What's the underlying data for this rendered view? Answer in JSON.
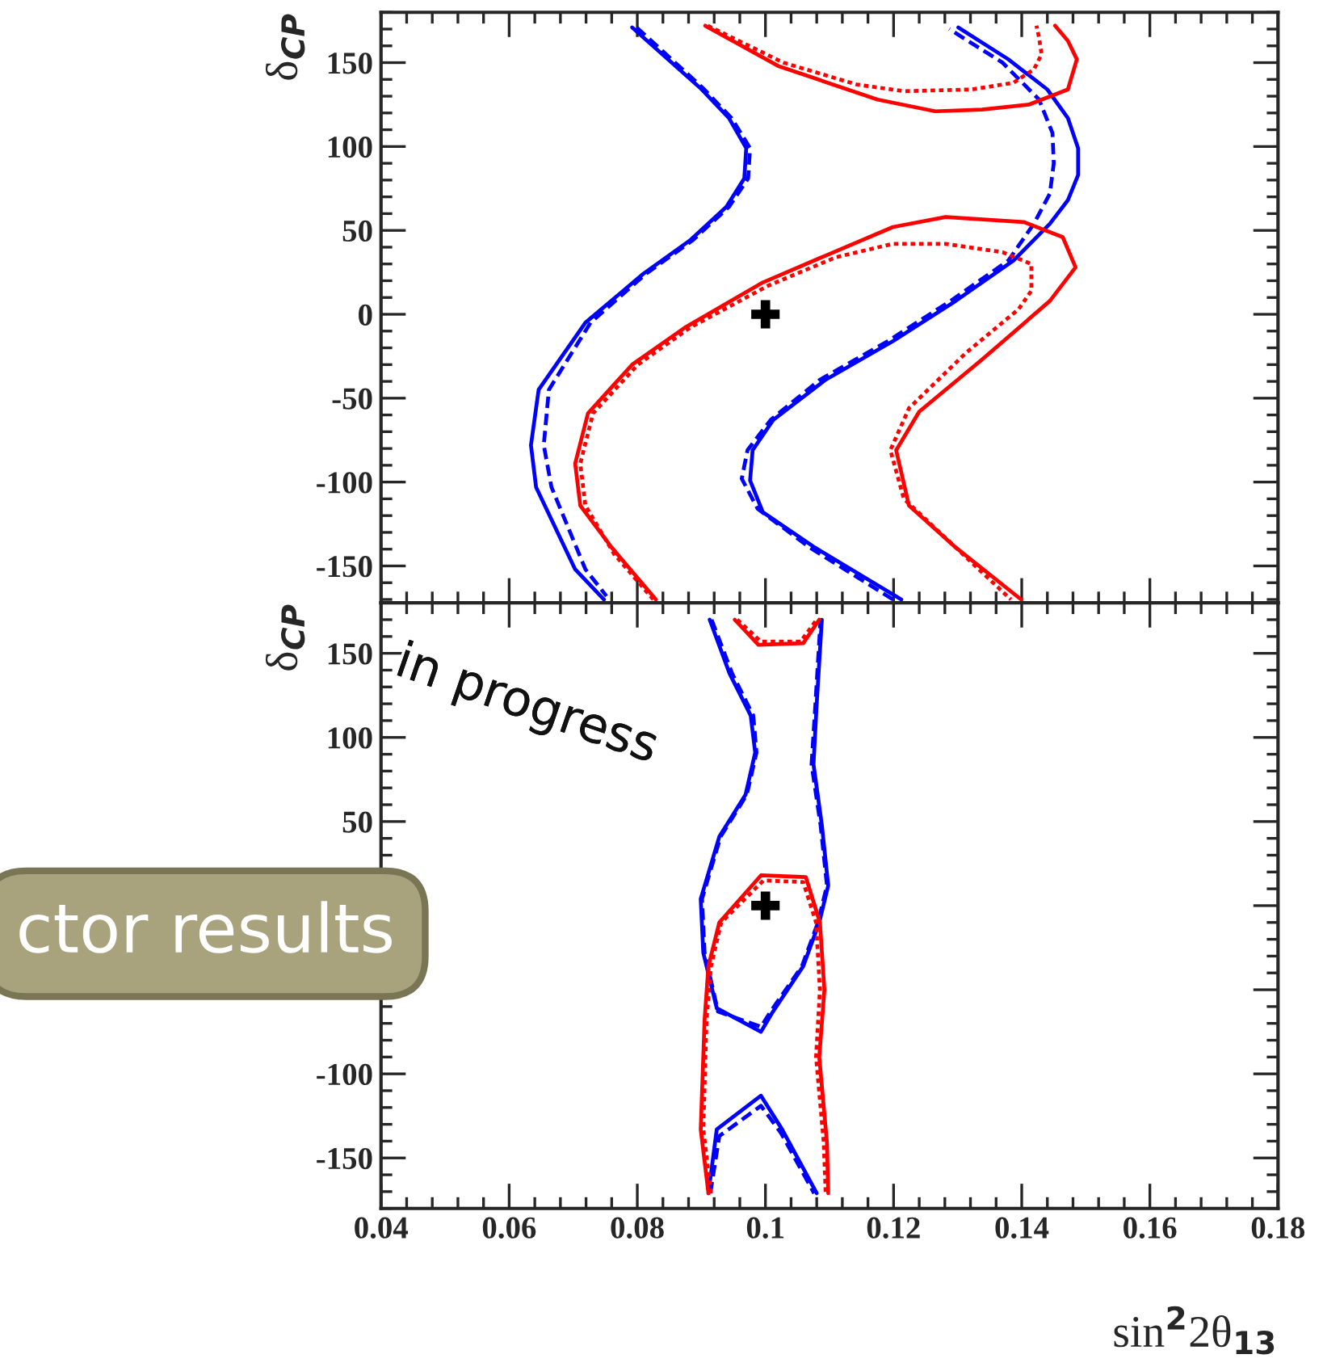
{
  "chart_data": [
    {
      "type": "line",
      "ylabel": "δ$_{CP}$",
      "xlim": [
        0.04,
        0.18
      ],
      "ylim": [
        -172,
        180
      ],
      "xticks": [
        0.04,
        0.06,
        0.08,
        0.1,
        0.12,
        0.14,
        0.16,
        0.18
      ],
      "yticks": [
        -150,
        -100,
        -50,
        0,
        50,
        100,
        150
      ],
      "tick_labels": "y",
      "grid": false,
      "annotations": [
        "in progress",
        "ctor results"
      ],
      "series": [
        {
          "color": "#0000ff",
          "line_style": "solid",
          "x": [
            0.0792,
            0.0898,
            0.0943,
            0.097,
            0.0967,
            0.0939,
            0.0882,
            0.0809,
            0.0719,
            0.0646,
            0.0634,
            0.0642,
            0.0703,
            0.0748
          ],
          "values": [
            171,
            135,
            117,
            99,
            81,
            64,
            44,
            24,
            -5,
            -45,
            -78,
            -103,
            -152,
            -170
          ]
        },
        {
          "color": "#0000ff",
          "line_style": "dashed",
          "x": [
            0.0799,
            0.0902,
            0.0947,
            0.0976,
            0.0973,
            0.0943,
            0.0886,
            0.0813,
            0.0727,
            0.0662,
            0.0654,
            0.0666,
            0.0719,
            0.0752
          ],
          "values": [
            171,
            135,
            117,
            99,
            81,
            64,
            44,
            24,
            -5,
            -45,
            -78,
            -103,
            -152,
            -168
          ]
        },
        {
          "color": "#0000ff",
          "line_style": "solid",
          "x": [
            0.1212,
            0.1077,
            0.0996,
            0.0976,
            0.098,
            0.1012,
            0.1094,
            0.1199,
            0.1297,
            0.1387,
            0.1444,
            0.1472,
            0.1488,
            0.1488,
            0.1472,
            0.144,
            0.1379,
            0.1301
          ],
          "values": [
            -170,
            -139,
            -118,
            -99,
            -81,
            -63,
            -39,
            -16,
            8,
            32,
            54,
            68,
            83,
            99,
            117,
            134,
            152,
            171
          ]
        },
        {
          "color": "#0000ff",
          "line_style": "dashed",
          "x": [
            0.1199,
            0.1069,
            0.0988,
            0.0963,
            0.0972,
            0.1008,
            0.1085,
            0.1191,
            0.1289,
            0.1379,
            0.1419,
            0.1444,
            0.145,
            0.1448,
            0.1427,
            0.137,
            0.1287
          ],
          "values": [
            -170,
            -139,
            -116,
            -98,
            -81,
            -63,
            -39,
            -16,
            8,
            32,
            54,
            72,
            90,
            108,
            128,
            150,
            170
          ]
        },
        {
          "color": "#ff0000",
          "line_style": "solid",
          "x": [
            0.0906,
            0.102,
            0.1175,
            0.1265,
            0.1338,
            0.1411,
            0.1472,
            0.1486,
            0.1472,
            0.1452
          ],
          "values": [
            172,
            148,
            128,
            121,
            122,
            125,
            134,
            152,
            163,
            172
          ]
        },
        {
          "color": "#ff0000",
          "line_style": "dotted",
          "x": [
            0.091,
            0.1028,
            0.1142,
            0.1216,
            0.1322,
            0.1387,
            0.1419,
            0.1431,
            0.1427,
            0.1423
          ],
          "values": [
            172,
            150,
            137,
            133,
            134,
            138,
            146,
            155,
            165,
            172
          ]
        },
        {
          "color": "#ff0000",
          "line_style": "solid",
          "x": [
            0.0829,
            0.076,
            0.0711,
            0.0703,
            0.0723,
            0.0792,
            0.0874,
            0.0996,
            0.1094,
            0.1199,
            0.1281,
            0.1403,
            0.1464,
            0.1484,
            0.1444,
            0.1338,
            0.124,
            0.1204,
            0.1224,
            0.1297,
            0.1399
          ],
          "values": [
            -170,
            -139,
            -114,
            -89,
            -59,
            -30,
            -8,
            19,
            35,
            52,
            58,
            55,
            46,
            28,
            8,
            -27,
            -58,
            -81,
            -114,
            -139,
            -170
          ]
        },
        {
          "color": "#ff0000",
          "line_style": "dotted",
          "x": [
            0.0825,
            0.0764,
            0.0719,
            0.0711,
            0.0731,
            0.0801,
            0.0882,
            0.1004,
            0.111,
            0.1199,
            0.1281,
            0.137,
            0.1415,
            0.1415,
            0.1395,
            0.1313,
            0.1224,
            0.1195,
            0.1216,
            0.1297,
            0.1383
          ],
          "values": [
            -170,
            -143,
            -114,
            -89,
            -59,
            -30,
            -8,
            17,
            34,
            42,
            42,
            37,
            30,
            14,
            3,
            -23,
            -56,
            -81,
            -110,
            -139,
            -170
          ]
        },
        {
          "type": "scatter",
          "marker": "cross",
          "color": "#000000",
          "x": [
            0.1
          ],
          "values": [
            0
          ]
        }
      ]
    },
    {
      "type": "line",
      "xlabel": "sin$^{2}$2θ$_{13}$",
      "ylabel": "δ$_{CP}$",
      "xlim": [
        0.04,
        0.18
      ],
      "ylim": [
        -180,
        180
      ],
      "xticks": [
        0.04,
        0.06,
        0.08,
        0.1,
        0.12,
        0.14,
        0.16,
        0.18
      ],
      "yticks": [
        -150,
        -100,
        {
          "value": -50,
          "label": null
        },
        {
          "value": 0,
          "label": null
        },
        50,
        100,
        150
      ],
      "grid": false,
      "series": [
        {
          "color": "#0000ff",
          "line_style": "solid",
          "x": [
            0.0913,
            0.0944,
            0.0977,
            0.0984,
            0.0969,
            0.0928,
            0.0899,
            0.0903,
            0.0924,
            0.0993,
            0.101,
            0.1059,
            0.1084,
            0.1098,
            0.1088,
            0.1075,
            0.108,
            0.1088
          ],
          "values": [
            170,
            138,
            113,
            91,
            66,
            41,
            4,
            -28,
            -61,
            -75,
            -64,
            -36,
            -10,
            12,
            48,
            84,
            120,
            170
          ]
        },
        {
          "color": "#0000ff",
          "line_style": "dashed",
          "x": [
            0.0916,
            0.0948,
            0.0981,
            0.0986,
            0.0971,
            0.093,
            0.0901,
            0.0905,
            0.0926,
            0.0993,
            0.1008,
            0.1057,
            0.1082,
            0.1096,
            0.1086,
            0.1072,
            0.1078,
            0.1086
          ],
          "values": [
            170,
            138,
            113,
            91,
            66,
            41,
            4,
            -28,
            -63,
            -72,
            -63,
            -36,
            -10,
            12,
            48,
            84,
            120,
            170
          ]
        },
        {
          "color": "#0000ff",
          "line_style": "solid",
          "x": [
            0.0911,
            0.0924,
            0.0993,
            0.1026,
            0.108
          ],
          "values": [
            -171,
            -133,
            -113,
            -133,
            -171
          ]
        },
        {
          "color": "#0000ff",
          "line_style": "dashed",
          "x": [
            0.0914,
            0.0928,
            0.0993,
            0.1024,
            0.1076
          ],
          "values": [
            -171,
            -137,
            -119,
            -135,
            -171
          ]
        },
        {
          "color": "#ff0000",
          "line_style": "solid",
          "x": [
            0.0952,
            0.0989,
            0.1059,
            0.1084
          ],
          "values": [
            170,
            155,
            156,
            170
          ]
        },
        {
          "color": "#ff0000",
          "line_style": "dotted",
          "x": [
            0.0956,
            0.0993,
            0.1055,
            0.108
          ],
          "values": [
            170,
            157,
            157,
            170
          ]
        },
        {
          "color": "#ff0000",
          "line_style": "solid",
          "x": [
            0.0911,
            0.0899,
            0.0905,
            0.0911,
            0.0928,
            0.0993,
            0.1063,
            0.1085,
            0.1092,
            0.1084,
            0.1096,
            0.1098
          ],
          "values": [
            -171,
            -133,
            -68,
            -36,
            -10,
            18,
            17,
            -10,
            -50,
            -90,
            -141,
            -171
          ]
        },
        {
          "color": "#ff0000",
          "line_style": "dotted",
          "x": [
            0.0915,
            0.0903,
            0.0908,
            0.0915,
            0.0931,
            0.0997,
            0.1059,
            0.1079,
            0.1085,
            0.1079,
            0.1091,
            0.1094
          ],
          "values": [
            -171,
            -133,
            -68,
            -36,
            -10,
            15,
            14,
            -10,
            -50,
            -90,
            -141,
            -171
          ]
        },
        {
          "type": "scatter",
          "marker": "cross",
          "color": "#000000",
          "x": [
            0.1
          ],
          "values": [
            0
          ]
        }
      ]
    }
  ]
}
